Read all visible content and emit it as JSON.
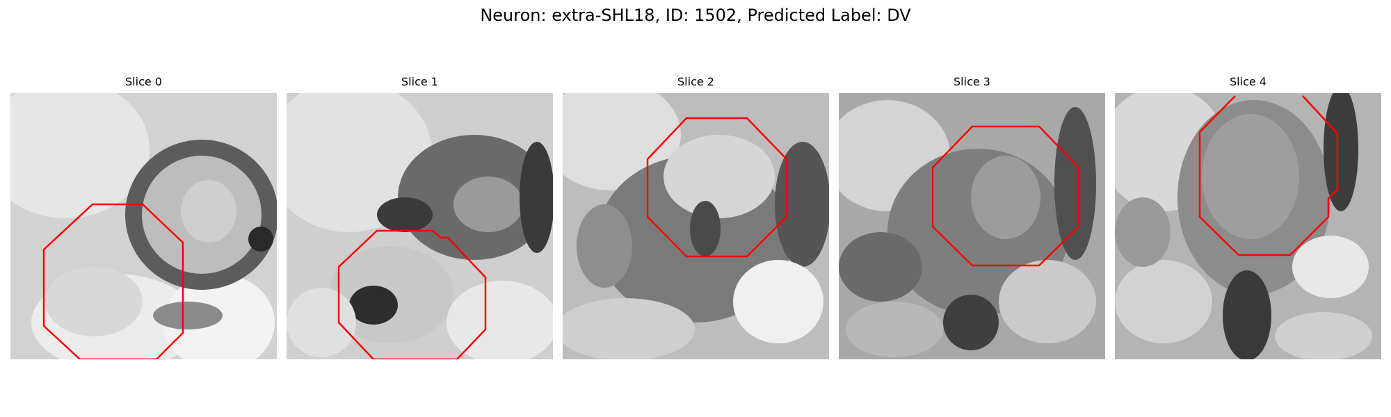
{
  "figure": {
    "title": "Neuron: extra-SHL18, ID: 1502, Predicted Label: DV",
    "neuron": "extra-SHL18",
    "id": 1502,
    "predicted_label": "DV"
  },
  "colors": {
    "contour": "#ff0000",
    "colormap": "grayscale"
  },
  "panels": [
    {
      "title": "Slice 0",
      "image": "neuron-slice-image"
    },
    {
      "title": "Slice 1",
      "image": "neuron-slice-image"
    },
    {
      "title": "Slice 2",
      "image": "neuron-slice-image"
    },
    {
      "title": "Slice 3",
      "image": "neuron-slice-image"
    },
    {
      "title": "Slice 4",
      "image": "neuron-slice-image"
    }
  ]
}
